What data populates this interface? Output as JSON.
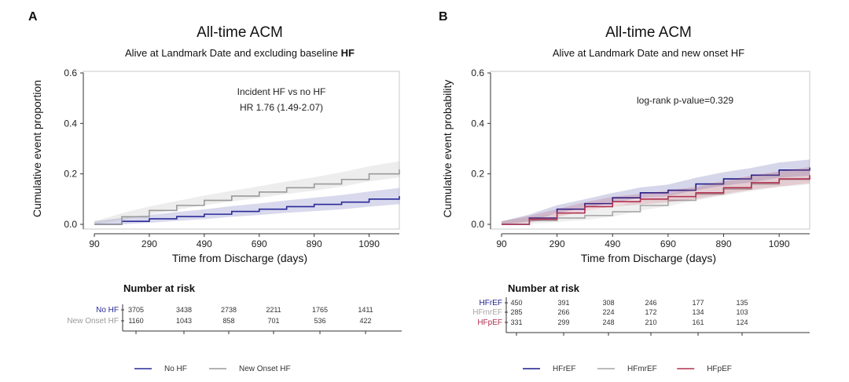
{
  "chart_data": [
    {
      "type": "line",
      "panel_label": "A",
      "title": "All-time ACM",
      "subtitle_prefix": "Alive at Landmark Date and excluding baseline ",
      "subtitle_bold": "HF",
      "xlabel": "Time from Discharge (days)",
      "ylabel": "Cumulative event proportion",
      "xlim": [
        90,
        1200
      ],
      "ylim": [
        0,
        0.6
      ],
      "xticks": [
        90,
        290,
        490,
        690,
        890,
        1090
      ],
      "yticks": [
        0.0,
        0.2,
        0.4,
        0.6
      ],
      "ytick_labels": [
        "0.0",
        "0.2",
        "0.4",
        "0.6"
      ],
      "annotation": [
        "Incident HF vs no HF",
        "HR 1.76 (1.49-2.07)"
      ],
      "series": [
        {
          "name": "No HF",
          "color": "#2a2a9a",
          "x": [
            90,
            190,
            290,
            390,
            490,
            590,
            690,
            790,
            890,
            990,
            1090,
            1200
          ],
          "y": [
            0.0,
            0.012,
            0.022,
            0.031,
            0.04,
            0.051,
            0.06,
            0.07,
            0.079,
            0.088,
            0.1,
            0.112
          ]
        },
        {
          "name": "New Onset HF",
          "color": "#9a9a9a",
          "x": [
            90,
            190,
            290,
            390,
            490,
            590,
            690,
            790,
            890,
            990,
            1090,
            1200
          ],
          "y": [
            0.0,
            0.03,
            0.055,
            0.075,
            0.095,
            0.112,
            0.128,
            0.145,
            0.16,
            0.178,
            0.2,
            0.218
          ]
        }
      ],
      "risk_table": {
        "title": "Number at risk",
        "rows": [
          {
            "label": "No HF",
            "color": "#2a2a9a",
            "values": [
              "3705",
              "3438",
              "2738",
              "2211",
              "1765",
              "1411"
            ]
          },
          {
            "label": "New Onset HF",
            "color": "#9a9a9a",
            "values": [
              "1160",
              "1043",
              "858",
              "701",
              "536",
              "422"
            ]
          }
        ]
      },
      "legend_position": "bottom"
    },
    {
      "type": "line",
      "panel_label": "B",
      "title": "All-time ACM",
      "subtitle_prefix": "Alive at Landmark Date and new onset HF",
      "subtitle_bold": "",
      "xlabel": "Time from Discharge (days)",
      "ylabel": "Cumulative event probability",
      "xlim": [
        90,
        1200
      ],
      "ylim": [
        0,
        0.6
      ],
      "xticks": [
        90,
        290,
        490,
        690,
        890,
        1090
      ],
      "yticks": [
        0.0,
        0.2,
        0.4,
        0.6
      ],
      "ytick_labels": [
        "0.0",
        "0.2",
        "0.4",
        "0.6"
      ],
      "annotation": [
        "log-rank p-value=0.329"
      ],
      "series": [
        {
          "name": "HFrEF",
          "color": "#1c1c8c",
          "x": [
            90,
            190,
            290,
            390,
            490,
            590,
            690,
            790,
            890,
            990,
            1090,
            1200
          ],
          "y": [
            0.0,
            0.025,
            0.06,
            0.082,
            0.105,
            0.125,
            0.135,
            0.16,
            0.18,
            0.195,
            0.215,
            0.225
          ]
        },
        {
          "name": "HFmrEF",
          "color": "#a6a6a6",
          "x": [
            90,
            190,
            290,
            390,
            490,
            590,
            690,
            790,
            890,
            990,
            1090,
            1200
          ],
          "y": [
            0.0,
            0.015,
            0.025,
            0.035,
            0.05,
            0.075,
            0.095,
            0.12,
            0.14,
            0.16,
            0.178,
            0.19
          ]
        },
        {
          "name": "HFpEF",
          "color": "#b03050",
          "x": [
            90,
            190,
            290,
            390,
            490,
            590,
            690,
            790,
            890,
            990,
            1090,
            1200
          ],
          "y": [
            0.0,
            0.02,
            0.045,
            0.07,
            0.09,
            0.1,
            0.11,
            0.125,
            0.145,
            0.165,
            0.18,
            0.195
          ]
        }
      ],
      "risk_table": {
        "title": "Number at risk",
        "rows": [
          {
            "label": "HFrEF",
            "color": "#1c1c8c",
            "values": [
              "450",
              "391",
              "308",
              "246",
              "177",
              "135"
            ]
          },
          {
            "label": "HFmrEF",
            "color": "#a6a6a6",
            "values": [
              "285",
              "266",
              "224",
              "172",
              "134",
              "103"
            ]
          },
          {
            "label": "HFpEF",
            "color": "#b03050",
            "values": [
              "331",
              "299",
              "248",
              "210",
              "161",
              "124"
            ]
          }
        ]
      },
      "legend_position": "bottom"
    }
  ]
}
